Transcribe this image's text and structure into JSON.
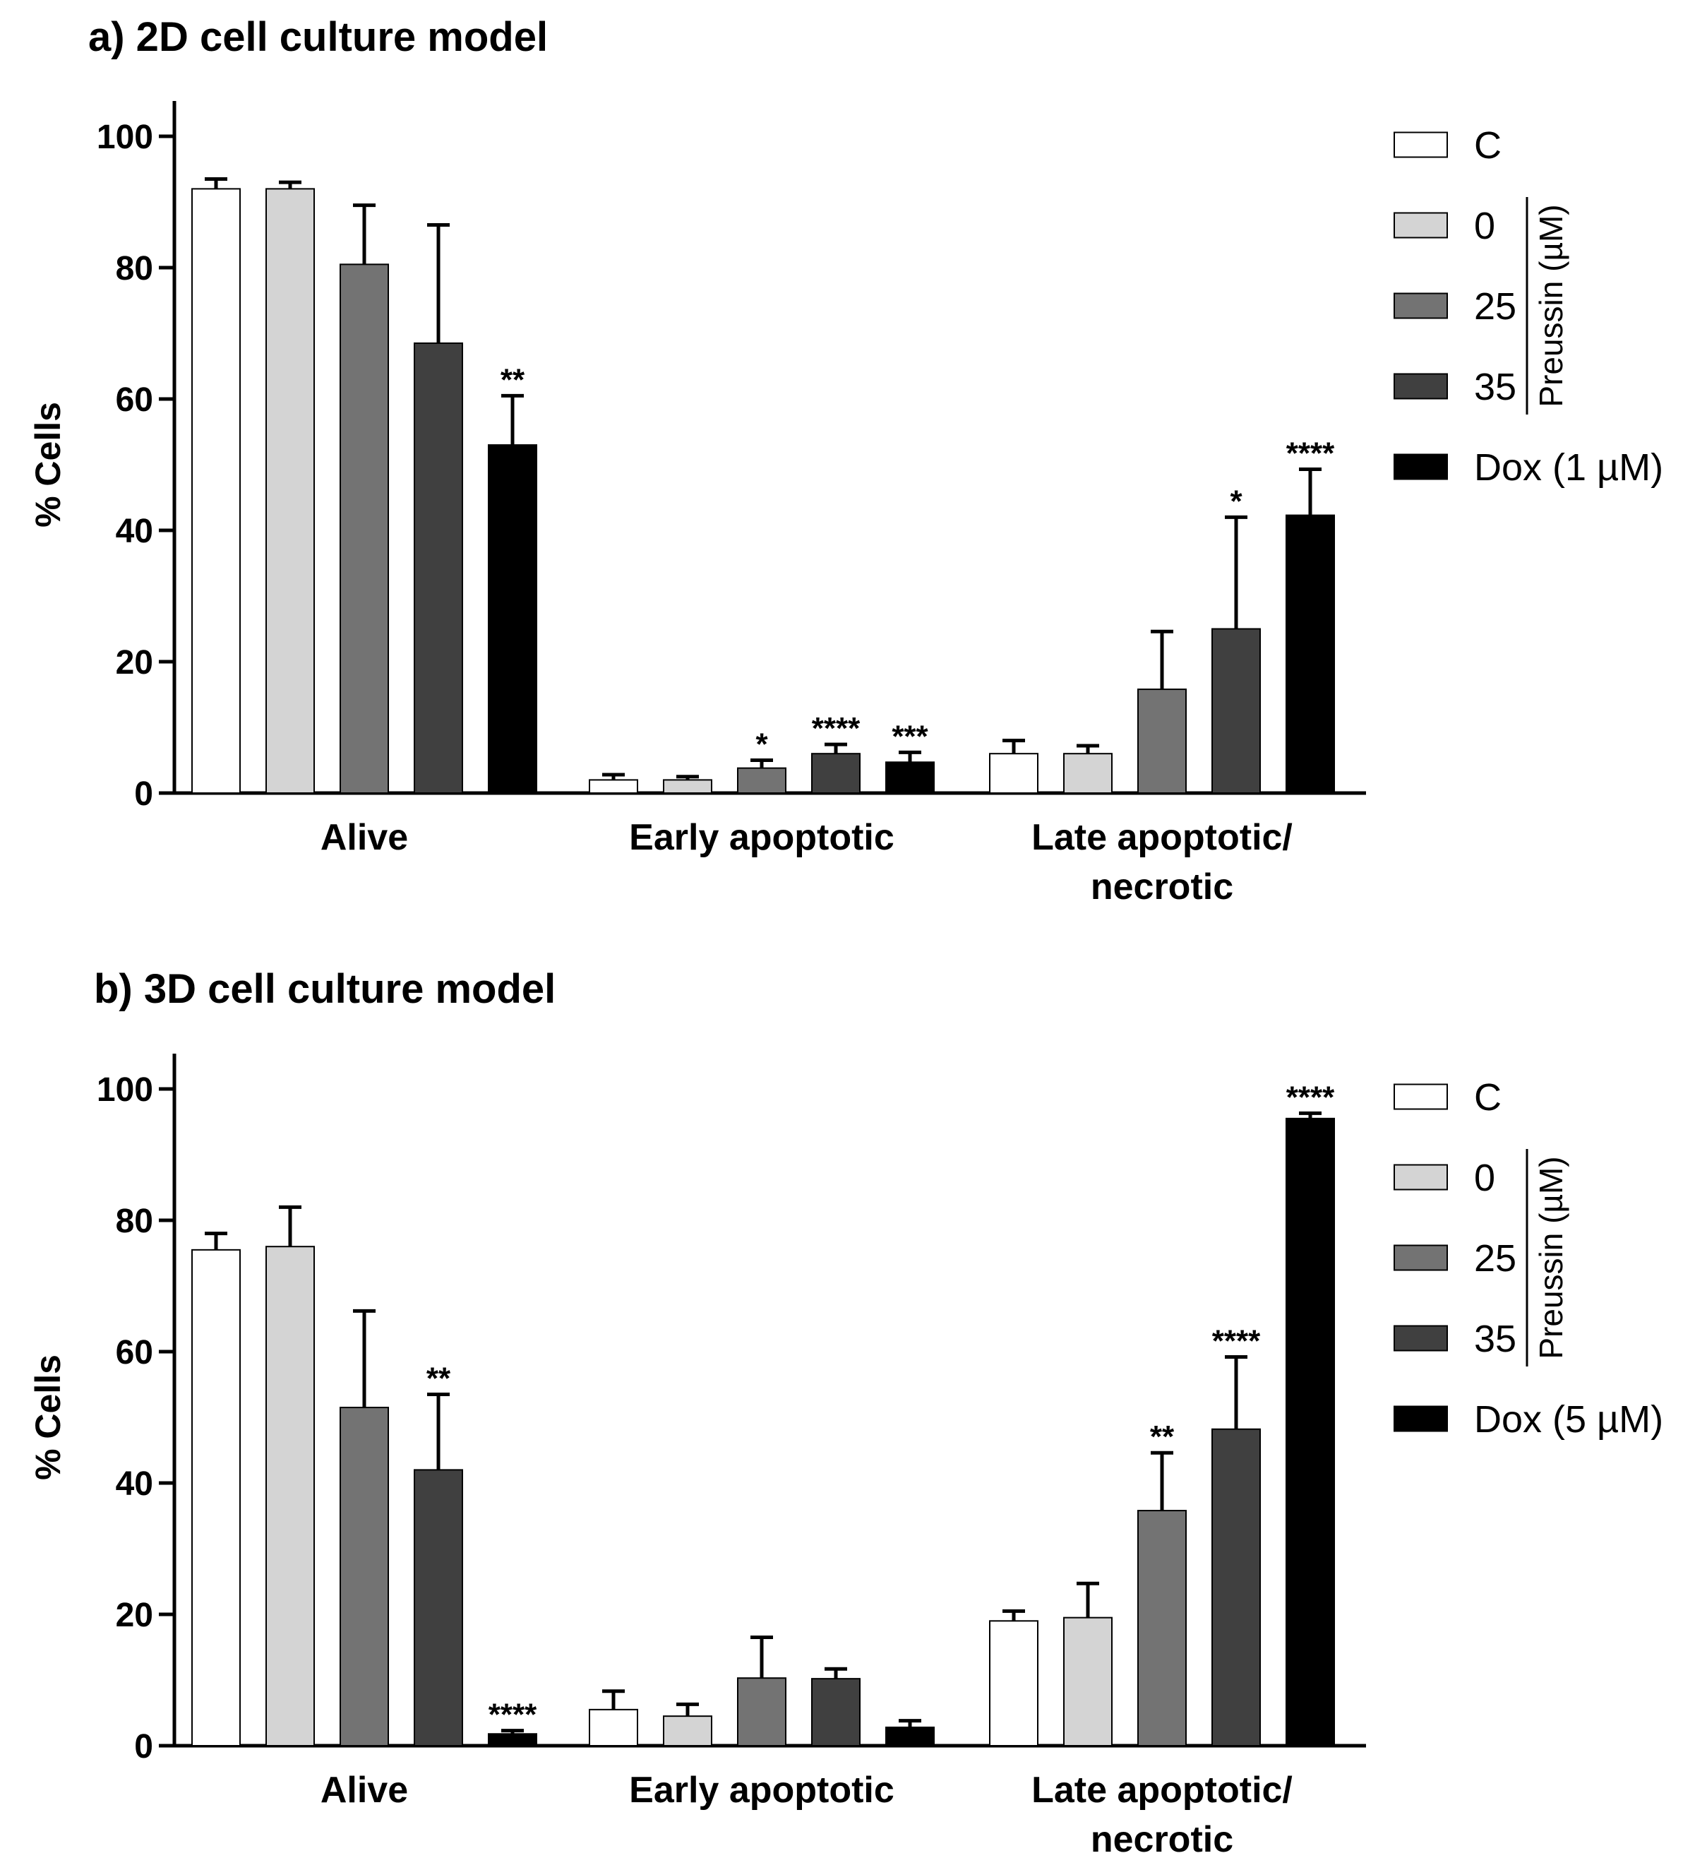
{
  "chart_data": [
    {
      "type": "bar",
      "title": "a) 2D cell culture model",
      "ylabel": "% Cells",
      "xlabel": "",
      "ylim": [
        0,
        100
      ],
      "yticks": [
        0,
        20,
        40,
        60,
        80,
        100
      ],
      "categories": [
        "Alive",
        "Early apoptotic",
        "Late apoptotic/ necrotic"
      ],
      "category_lines": [
        [
          "Alive"
        ],
        [
          "Early apoptotic"
        ],
        [
          "Late apoptotic/",
          "necrotic"
        ]
      ],
      "series": [
        {
          "name": "C",
          "color": "#ffffff",
          "values": [
            92,
            2,
            6
          ],
          "errors": [
            1.5,
            0.8,
            2.0
          ],
          "significance": [
            "",
            "",
            ""
          ]
        },
        {
          "name": "0",
          "color": "#d4d4d4",
          "values": [
            92,
            2,
            6
          ],
          "errors": [
            1.0,
            0.5,
            1.2
          ],
          "significance": [
            "",
            "",
            ""
          ]
        },
        {
          "name": "25",
          "color": "#737373",
          "values": [
            80.5,
            3.8,
            15.8
          ],
          "errors": [
            9.0,
            1.2,
            8.8
          ],
          "significance": [
            "",
            "*",
            ""
          ]
        },
        {
          "name": "35",
          "color": "#404040",
          "values": [
            68.5,
            6,
            25
          ],
          "errors": [
            18,
            1.4,
            17
          ],
          "significance": [
            "",
            "****",
            "*"
          ]
        },
        {
          "name": "Dox (1 µM)",
          "color": "#000000",
          "values": [
            53,
            4.7,
            42.3
          ],
          "errors": [
            7.5,
            1.5,
            7.0
          ],
          "significance": [
            "**",
            "***",
            "****"
          ]
        }
      ],
      "legend_group_label": "Preussin (µM)",
      "legend_position": "right"
    },
    {
      "type": "bar",
      "title": "b) 3D cell culture model",
      "ylabel": "% Cells",
      "xlabel": "",
      "ylim": [
        0,
        100
      ],
      "yticks": [
        0,
        20,
        40,
        60,
        80,
        100
      ],
      "categories": [
        "Alive",
        "Early apoptotic",
        "Late apoptotic/ necrotic"
      ],
      "category_lines": [
        [
          "Alive"
        ],
        [
          "Early apoptotic"
        ],
        [
          "Late apoptotic/",
          "necrotic"
        ]
      ],
      "series": [
        {
          "name": "C",
          "color": "#ffffff",
          "values": [
            75.5,
            5.5,
            19
          ],
          "errors": [
            2.5,
            2.8,
            1.5
          ],
          "significance": [
            "",
            "",
            ""
          ]
        },
        {
          "name": "0",
          "color": "#d4d4d4",
          "values": [
            76,
            4.5,
            19.5
          ],
          "errors": [
            6.0,
            1.8,
            5.2
          ],
          "significance": [
            "",
            "",
            ""
          ]
        },
        {
          "name": "25",
          "color": "#737373",
          "values": [
            51.5,
            10.3,
            35.8
          ],
          "errors": [
            14.7,
            6.2,
            8.8
          ],
          "significance": [
            "",
            "",
            "**"
          ]
        },
        {
          "name": "35",
          "color": "#404040",
          "values": [
            42,
            10.2,
            48.2
          ],
          "errors": [
            11.5,
            1.5,
            11.0
          ],
          "significance": [
            "**",
            "",
            "****"
          ]
        },
        {
          "name": "Dox (5 µM)",
          "color": "#000000",
          "values": [
            1.8,
            2.8,
            95.5
          ],
          "errors": [
            0.5,
            1.0,
            0.8
          ],
          "significance": [
            "****",
            "",
            "****"
          ]
        }
      ],
      "legend_group_label": "Preussin (µM)",
      "legend_position": "right"
    }
  ]
}
